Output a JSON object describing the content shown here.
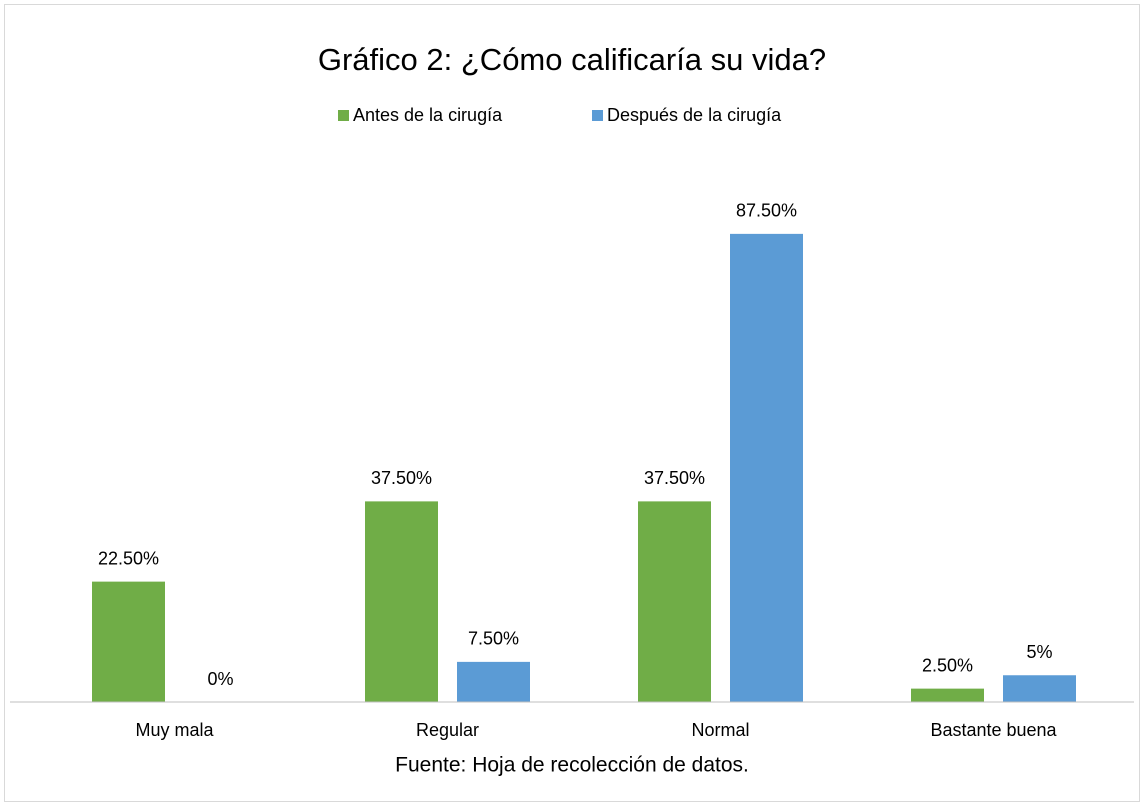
{
  "chart_data": {
    "type": "bar",
    "title": "Gráfico 2: ¿Cómo calificaría su vida?",
    "caption": "Fuente: Hoja de recolección de datos.",
    "categories": [
      "Muy mala",
      "Regular",
      "Normal",
      "Bastante buena"
    ],
    "series": [
      {
        "name": "Antes de la cirugía",
        "color": "#70ad47",
        "values": [
          22.5,
          37.5,
          37.5,
          2.5
        ],
        "value_labels": [
          "22.50%",
          "37.50%",
          "37.50%",
          "2.50%"
        ]
      },
      {
        "name": "Después de la cirugía",
        "color": "#5b9bd5",
        "values": [
          0,
          7.5,
          87.5,
          5
        ],
        "value_labels": [
          "0%",
          "7.50%",
          "87.50%",
          "5%"
        ]
      }
    ],
    "ylim": [
      0,
      100
    ],
    "legend": "top"
  }
}
